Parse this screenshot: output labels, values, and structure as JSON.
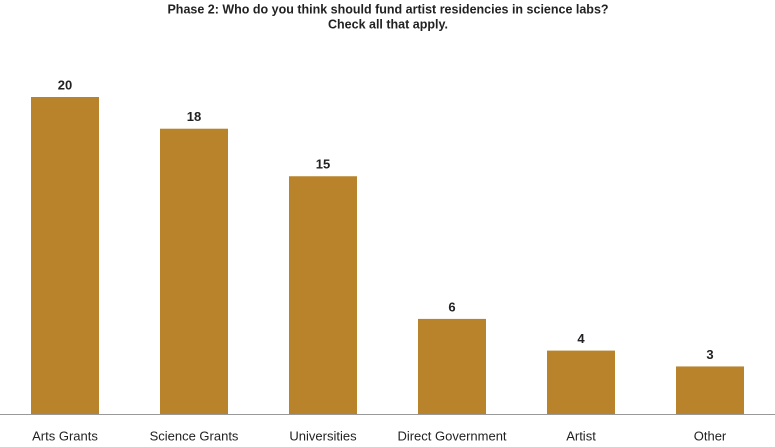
{
  "chart_data": {
    "type": "bar",
    "title": [
      "Phase 2: Who do you think should fund artist residencies in science labs?",
      "Check all that apply."
    ],
    "categories": [
      "Arts Grants",
      "Science Grants",
      "Universities",
      "Direct Government",
      "Artist",
      "Other"
    ],
    "values": [
      20,
      18,
      15,
      6,
      4,
      3
    ],
    "color": "#b8832b"
  }
}
